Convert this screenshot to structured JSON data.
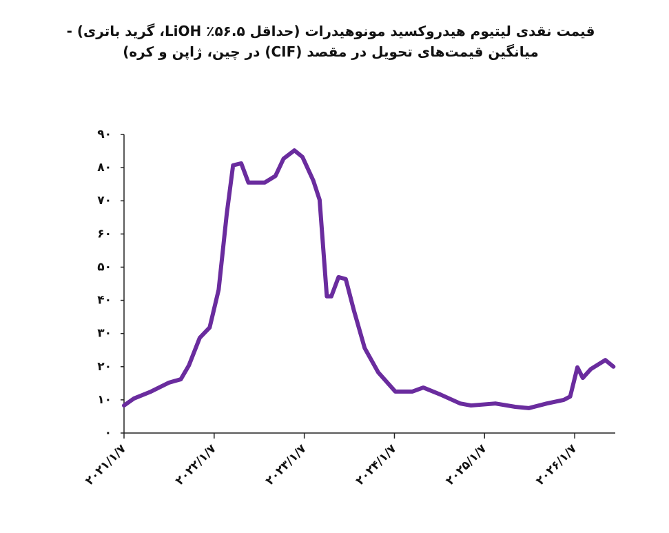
{
  "chart_data": {
    "type": "line",
    "title": "قیمت نقدی لیتیوم هیدروکسید مونوهیدرات (حداقل ۵۶.۵٪ LiOH، گرید باتری) - میانگین قیمت‌های تحویل در مقصد (CIF) در چین، ژاپن و کره)",
    "x": [
      2021.0,
      2021.11,
      2021.3,
      2021.5,
      2021.63,
      2021.72,
      2021.84,
      2021.95,
      2022.05,
      2022.14,
      2022.21,
      2022.3,
      2022.38,
      2022.56,
      2022.68,
      2022.77,
      2022.89,
      2022.98,
      2023.1,
      2023.17,
      2023.25,
      2023.3,
      2023.38,
      2023.46,
      2023.55,
      2023.67,
      2023.82,
      2024.01,
      2024.2,
      2024.32,
      2024.51,
      2024.73,
      2024.85,
      2025.12,
      2025.34,
      2025.49,
      2025.69,
      2025.88,
      2025.95,
      2026.03,
      2026.09,
      2026.18,
      2026.34,
      2026.43
    ],
    "values": [
      8.3,
      10.4,
      12.5,
      15.2,
      16.2,
      20.4,
      28.7,
      31.8,
      43.2,
      66.1,
      80.7,
      81.3,
      75.5,
      75.5,
      77.5,
      82.7,
      85.2,
      83.2,
      76.1,
      70.3,
      41.2,
      41.2,
      47.0,
      46.4,
      37.0,
      25.6,
      18.3,
      12.5,
      12.5,
      13.7,
      11.6,
      8.9,
      8.3,
      8.9,
      7.9,
      7.5,
      8.9,
      10.0,
      11.0,
      19.8,
      16.6,
      19.3,
      22.0,
      20.0
    ],
    "color": "#6a2c9e",
    "xlim": [
      2021.0,
      2026.45
    ],
    "xticks": [
      {
        "value": 2021,
        "label": "۲۰۲۱/۱/۷"
      },
      {
        "value": 2022,
        "label": "۲۰۲۲/۱/۷"
      },
      {
        "value": 2023,
        "label": "۲۰۲۳/۱/۷"
      },
      {
        "value": 2024,
        "label": "۲۰۲۴/۱/۷"
      },
      {
        "value": 2025,
        "label": "۲۰۲۵/۱/۷"
      },
      {
        "value": 2026,
        "label": "۲۰۲۶/۱/۷"
      }
    ],
    "ylim": [
      0,
      90
    ],
    "yticks": [
      {
        "value": 0,
        "label": "۰"
      },
      {
        "value": 10,
        "label": "۱۰"
      },
      {
        "value": 20,
        "label": "۲۰"
      },
      {
        "value": 30,
        "label": "۳۰"
      },
      {
        "value": 40,
        "label": "۴۰"
      },
      {
        "value": 50,
        "label": "۵۰"
      },
      {
        "value": 60,
        "label": "۶۰"
      },
      {
        "value": 70,
        "label": "۷۰"
      },
      {
        "value": 80,
        "label": "۸۰"
      },
      {
        "value": 90,
        "label": "۹۰"
      }
    ]
  }
}
